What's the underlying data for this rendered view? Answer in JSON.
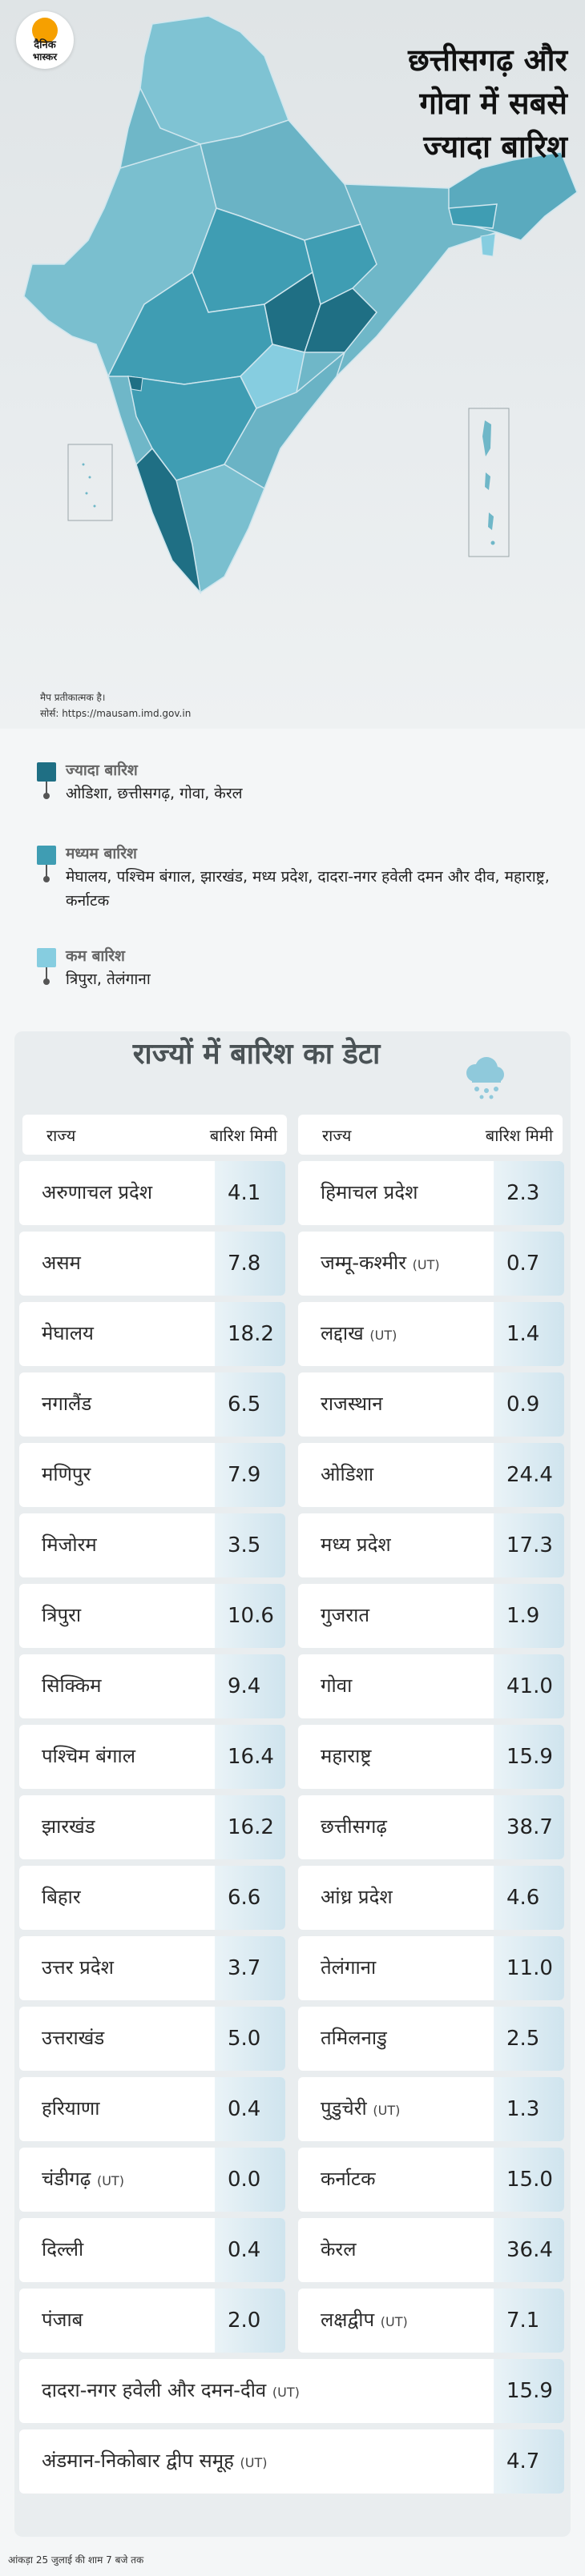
{
  "brand": {
    "line1": "दैनिक",
    "line2": "भास्कर"
  },
  "headline": [
    "छत्तीसगढ़ और",
    "गोवा में सबसे",
    "ज्यादा बारिश"
  ],
  "map_note": "मैप प्रतीकात्मक है।",
  "map_source": "सोर्स: https://mausam.imd.gov.in",
  "colors": {
    "high": "#1f6f84",
    "medium": "#3f9db3",
    "low": "#86cde0",
    "base": "#6fb7c8"
  },
  "legend": [
    {
      "title": "ज्यादा बारिश",
      "desc": "ओडिशा, छत्तीसगढ़, गोवा, केरल",
      "color": "#1f6f84"
    },
    {
      "title": "मध्यम बारिश",
      "desc": "मेघालय, पश्चिम बंगाल, झारखंड, मध्य प्रदेश, दादरा-नगर हवेली दमन और दीव, महाराष्ट्र, कर्नाटक",
      "color": "#3f9db3"
    },
    {
      "title": "कम बारिश",
      "desc": "त्रिपुरा, तेलंगाना",
      "color": "#86cde0"
    }
  ],
  "table_title": "राज्यों में बारिश का डेटा",
  "col_state": "राज्य",
  "col_rain": "बारिश मिमी",
  "ut_tag": "(UT)",
  "left_rows": [
    {
      "name": "अरुणाचल प्रदेश",
      "ut": false,
      "value": "4.1"
    },
    {
      "name": "असम",
      "ut": false,
      "value": "7.8"
    },
    {
      "name": "मेघालय",
      "ut": false,
      "value": "18.2"
    },
    {
      "name": "नगालैंड",
      "ut": false,
      "value": "6.5"
    },
    {
      "name": "मणिपुर",
      "ut": false,
      "value": "7.9"
    },
    {
      "name": "मिजोरम",
      "ut": false,
      "value": "3.5"
    },
    {
      "name": "त्रिपुरा",
      "ut": false,
      "value": "10.6"
    },
    {
      "name": "सिक्किम",
      "ut": false,
      "value": "9.4"
    },
    {
      "name": "पश्चिम बंगाल",
      "ut": false,
      "value": "16.4"
    },
    {
      "name": "झारखंड",
      "ut": false,
      "value": "16.2"
    },
    {
      "name": "बिहार",
      "ut": false,
      "value": "6.6"
    },
    {
      "name": "उत्तर प्रदेश",
      "ut": false,
      "value": "3.7"
    },
    {
      "name": "उत्तराखंड",
      "ut": false,
      "value": "5.0"
    },
    {
      "name": "हरियाणा",
      "ut": false,
      "value": "0.4"
    },
    {
      "name": "चंडीगढ़",
      "ut": true,
      "value": "0.0"
    },
    {
      "name": "दिल्ली",
      "ut": false,
      "value": "0.4"
    },
    {
      "name": "पंजाब",
      "ut": false,
      "value": "2.0"
    }
  ],
  "right_rows": [
    {
      "name": "हिमाचल प्रदेश",
      "ut": false,
      "value": "2.3"
    },
    {
      "name": "जम्मू-कश्मीर",
      "ut": true,
      "value": "0.7"
    },
    {
      "name": "लद्दाख",
      "ut": true,
      "value": "1.4"
    },
    {
      "name": "राजस्थान",
      "ut": false,
      "value": "0.9"
    },
    {
      "name": "ओडिशा",
      "ut": false,
      "value": "24.4"
    },
    {
      "name": "मध्य प्रदेश",
      "ut": false,
      "value": "17.3"
    },
    {
      "name": "गुजरात",
      "ut": false,
      "value": "1.9"
    },
    {
      "name": "गोवा",
      "ut": false,
      "value": "41.0"
    },
    {
      "name": "महाराष्ट्र",
      "ut": false,
      "value": "15.9"
    },
    {
      "name": "छत्तीसगढ़",
      "ut": false,
      "value": "38.7"
    },
    {
      "name": "आंध्र प्रदेश",
      "ut": false,
      "value": "4.6"
    },
    {
      "name": "तेलंगाना",
      "ut": false,
      "value": "11.0"
    },
    {
      "name": "तमिलनाडु",
      "ut": false,
      "value": "2.5"
    },
    {
      "name": "पुडुचेरी",
      "ut": true,
      "value": "1.3"
    },
    {
      "name": "कर्नाटक",
      "ut": false,
      "value": "15.0"
    },
    {
      "name": "केरल",
      "ut": false,
      "value": "36.4"
    },
    {
      "name": "लक्षद्वीप",
      "ut": true,
      "value": "7.1"
    }
  ],
  "wide_rows": [
    {
      "name": "दादरा-नगर हवेली और दमन-दीव",
      "ut": true,
      "value": "15.9"
    },
    {
      "name": "अंडमान-निकोबार द्वीप समूह",
      "ut": true,
      "value": "4.7"
    }
  ],
  "footnote": "आंकड़ा 25 जुलाई की शाम 7 बजे तक"
}
